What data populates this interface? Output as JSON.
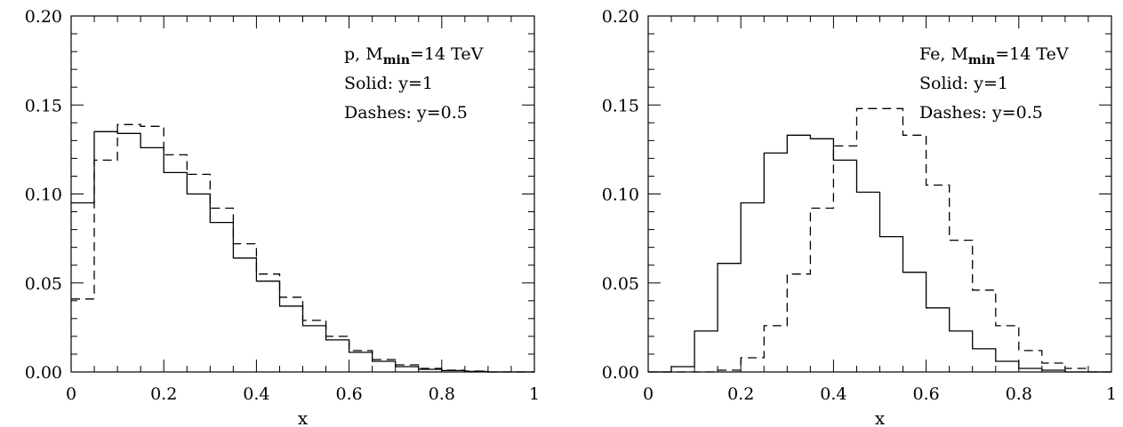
{
  "chart_data": [
    {
      "type": "line",
      "step": true,
      "xlabel": "x",
      "ylabel": "",
      "xlim": [
        0,
        1
      ],
      "ylim": [
        0,
        0.2
      ],
      "x_ticks": [
        "0",
        "0.2",
        "0.4",
        "0.6",
        "0.8",
        "1"
      ],
      "y_ticks": [
        "0.00",
        "0.05",
        "0.10",
        "0.15",
        "0.20"
      ],
      "annotation": {
        "line1_prefix": "p, M",
        "line1_sub": "min",
        "line1_suffix": "=14 TeV",
        "line2": "Solid: y=1",
        "line3": "Dashes: y=0.5"
      },
      "bin_edges": [
        0,
        0.05,
        0.1,
        0.15,
        0.2,
        0.25,
        0.3,
        0.35,
        0.4,
        0.45,
        0.5,
        0.55,
        0.6,
        0.65,
        0.7,
        0.75,
        0.8,
        0.85,
        0.9,
        0.95,
        1.0
      ],
      "series": [
        {
          "style": "solid",
          "values": [
            0.095,
            0.135,
            0.134,
            0.126,
            0.112,
            0.1,
            0.084,
            0.064,
            0.051,
            0.037,
            0.026,
            0.018,
            0.011,
            0.006,
            0.003,
            0.0015,
            0.0008,
            0.0003,
            0,
            0
          ]
        },
        {
          "style": "dashed",
          "values": [
            0.041,
            0.119,
            0.139,
            0.138,
            0.122,
            0.111,
            0.092,
            0.072,
            0.055,
            0.042,
            0.029,
            0.02,
            0.012,
            0.007,
            0.004,
            0.002,
            0.001,
            0.0005,
            0,
            0
          ]
        }
      ]
    },
    {
      "type": "line",
      "step": true,
      "xlabel": "x",
      "ylabel": "",
      "xlim": [
        0,
        1
      ],
      "ylim": [
        0,
        0.2
      ],
      "x_ticks": [
        "0",
        "0.2",
        "0.4",
        "0.6",
        "0.8",
        "1"
      ],
      "y_ticks": [
        "0.00",
        "0.05",
        "0.10",
        "0.15",
        "0.20"
      ],
      "annotation": {
        "line1_prefix": "Fe, M",
        "line1_sub": "min",
        "line1_suffix": "=14 TeV",
        "line2": "Solid: y=1",
        "line3": "Dashes: y=0.5"
      },
      "bin_edges": [
        0,
        0.05,
        0.1,
        0.15,
        0.2,
        0.25,
        0.3,
        0.35,
        0.4,
        0.45,
        0.5,
        0.55,
        0.6,
        0.65,
        0.7,
        0.75,
        0.8,
        0.85,
        0.9,
        0.95,
        1.0
      ],
      "series": [
        {
          "style": "solid",
          "values": [
            0,
            0.003,
            0.023,
            0.061,
            0.095,
            0.123,
            0.133,
            0.131,
            0.119,
            0.101,
            0.076,
            0.056,
            0.036,
            0.023,
            0.013,
            0.006,
            0.002,
            0.001,
            0,
            0
          ]
        },
        {
          "style": "dashed",
          "values": [
            0,
            0,
            0,
            0.001,
            0.008,
            0.026,
            0.055,
            0.092,
            0.127,
            0.148,
            0.148,
            0.133,
            0.105,
            0.074,
            0.046,
            0.026,
            0.012,
            0.005,
            0.002,
            0
          ]
        }
      ]
    }
  ]
}
